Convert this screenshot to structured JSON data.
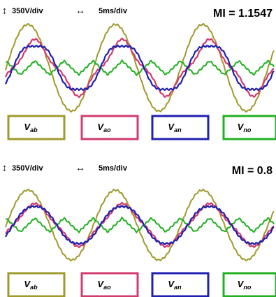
{
  "panels": [
    {
      "volt_scale": "350V/div",
      "time_scale": "5ms/div",
      "mi": "MI = 1.1547",
      "legend": [
        {
          "main": "V",
          "sub": "ab"
        },
        {
          "main": "V",
          "sub": "ao"
        },
        {
          "main": "V",
          "sub": "an"
        },
        {
          "main": "V",
          "sub": "no"
        }
      ]
    },
    {
      "volt_scale": "350V/div",
      "time_scale": "5ms/div",
      "mi": "MI = 0.8",
      "legend": [
        {
          "main": "V",
          "sub": "ab"
        },
        {
          "main": "V",
          "sub": "ao"
        },
        {
          "main": "V",
          "sub": "an"
        },
        {
          "main": "V",
          "sub": "no"
        }
      ]
    }
  ]
}
